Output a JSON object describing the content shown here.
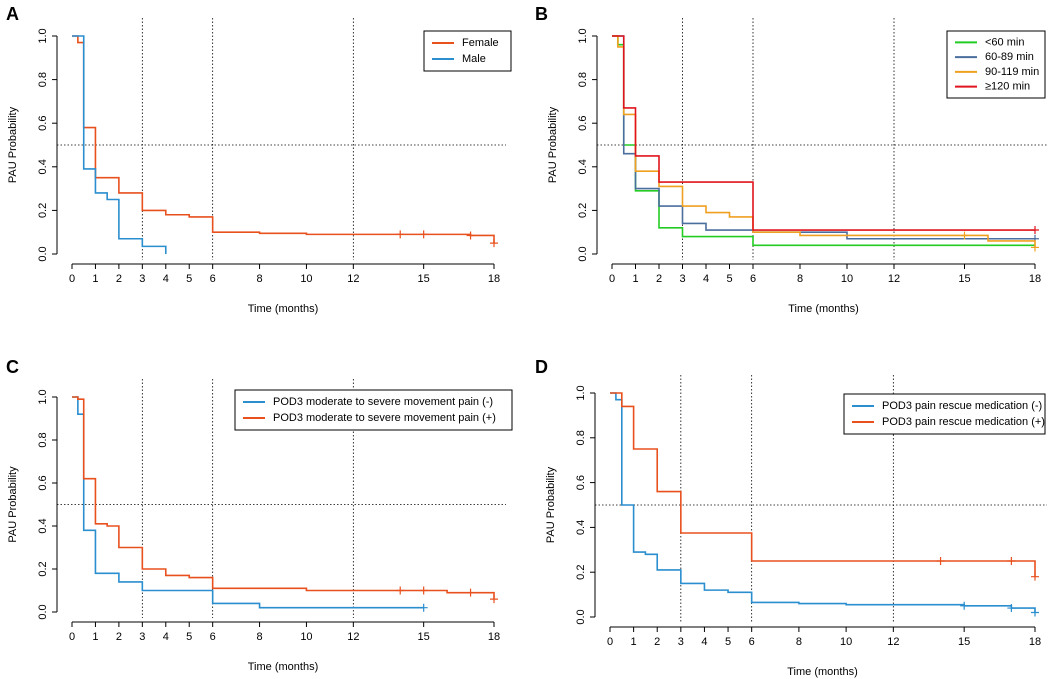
{
  "chart_data": [
    {
      "panel": "A",
      "type": "line",
      "subtype": "kaplan-meier step",
      "xlabel": "Time (months)",
      "ylabel": "PAU Probability",
      "xlim": [
        0,
        18
      ],
      "ylim": [
        0,
        1
      ],
      "xticks": [
        0,
        1,
        2,
        3,
        4,
        5,
        6,
        8,
        10,
        12,
        15,
        18
      ],
      "yticks": [
        0.0,
        0.2,
        0.4,
        0.6,
        0.8,
        1.0
      ],
      "ytick_labels": [
        "0.0",
        "0.2",
        "0.4",
        "0.6",
        "0.8",
        "1.0"
      ],
      "vlines": [
        3,
        6,
        12
      ],
      "hline": 0.5,
      "legend_position": "top-right",
      "series": [
        {
          "name": "Female",
          "color": "#e8501e",
          "x": [
            0,
            0.25,
            0.5,
            1,
            2,
            3,
            4,
            5,
            6,
            8,
            10,
            14,
            15,
            17,
            18
          ],
          "y": [
            1.0,
            0.97,
            0.58,
            0.35,
            0.28,
            0.2,
            0.18,
            0.17,
            0.1,
            0.095,
            0.09,
            0.09,
            0.09,
            0.085,
            0.05
          ],
          "censor_x": [
            14,
            15,
            17,
            18
          ]
        },
        {
          "name": "Male",
          "color": "#2a8ecf",
          "x": [
            0,
            0.5,
            1,
            1.5,
            2,
            3,
            4
          ],
          "y": [
            1.0,
            0.39,
            0.28,
            0.25,
            0.07,
            0.035,
            0.0
          ],
          "censor_x": []
        }
      ]
    },
    {
      "panel": "B",
      "type": "line",
      "subtype": "kaplan-meier step",
      "xlabel": "Time (months)",
      "ylabel": "PAU Probability",
      "xlim": [
        0,
        18
      ],
      "ylim": [
        0,
        1
      ],
      "xticks": [
        0,
        1,
        2,
        3,
        4,
        5,
        6,
        8,
        10,
        12,
        15,
        18
      ],
      "yticks": [
        0.0,
        0.2,
        0.4,
        0.6,
        0.8,
        1.0
      ],
      "ytick_labels": [
        "0.0",
        "0.2",
        "0.4",
        "0.6",
        "0.8",
        "1.0"
      ],
      "vlines": [
        3,
        6,
        12
      ],
      "hline": 0.5,
      "legend_position": "top-right",
      "series": [
        {
          "name": "<60 min",
          "color": "#22cc22",
          "x": [
            0,
            0.25,
            0.5,
            1,
            2,
            3,
            6,
            18
          ],
          "y": [
            1.0,
            0.96,
            0.5,
            0.29,
            0.12,
            0.08,
            0.04,
            0.04
          ],
          "censor_x": []
        },
        {
          "name": "60-89 min",
          "color": "#4a6e9e",
          "x": [
            0,
            0.5,
            1,
            2,
            3,
            4,
            6,
            10,
            18
          ],
          "y": [
            1.0,
            0.46,
            0.3,
            0.22,
            0.14,
            0.11,
            0.1,
            0.07,
            0.07
          ],
          "censor_x": [
            18
          ]
        },
        {
          "name": "90-119 min",
          "color": "#f0a020",
          "x": [
            0,
            0.25,
            0.5,
            1,
            2,
            3,
            4,
            5,
            6,
            8,
            15,
            16,
            18
          ],
          "y": [
            1.0,
            0.95,
            0.64,
            0.38,
            0.31,
            0.22,
            0.19,
            0.17,
            0.1,
            0.085,
            0.085,
            0.06,
            0.03
          ],
          "censor_x": [
            15,
            18
          ]
        },
        {
          "name": "≥120 min",
          "color": "#e0141e",
          "x": [
            0,
            0.5,
            1,
            2,
            3,
            6,
            18
          ],
          "y": [
            1.0,
            0.67,
            0.45,
            0.33,
            0.33,
            0.11,
            0.11
          ],
          "censor_x": [
            18
          ]
        }
      ]
    },
    {
      "panel": "C",
      "type": "line",
      "subtype": "kaplan-meier step",
      "xlabel": "Time (months)",
      "ylabel": "PAU Probability",
      "xlim": [
        0,
        18
      ],
      "ylim": [
        0,
        1
      ],
      "xticks": [
        0,
        1,
        2,
        3,
        4,
        5,
        6,
        8,
        10,
        12,
        15,
        18
      ],
      "yticks": [
        0.0,
        0.2,
        0.4,
        0.6,
        0.8,
        1.0
      ],
      "ytick_labels": [
        "0.0",
        "0.2",
        "0.4",
        "0.6",
        "0.8",
        "1.0"
      ],
      "vlines": [
        3,
        6,
        12
      ],
      "hline": 0.5,
      "legend_position": "top-right",
      "series": [
        {
          "name": "POD3 moderate to severe movement pain (-)",
          "color": "#2a8ecf",
          "x": [
            0,
            0.25,
            0.5,
            1,
            2,
            3,
            6,
            8,
            15
          ],
          "y": [
            1.0,
            0.92,
            0.38,
            0.18,
            0.14,
            0.1,
            0.04,
            0.02,
            0.02
          ],
          "censor_x": [
            15
          ]
        },
        {
          "name": "POD3 moderate to severe movement pain (+)",
          "color": "#e8501e",
          "x": [
            0,
            0.25,
            0.5,
            1,
            1.5,
            2,
            3,
            4,
            5,
            6,
            10,
            14,
            15,
            16,
            17,
            18
          ],
          "y": [
            1.0,
            0.99,
            0.62,
            0.41,
            0.4,
            0.3,
            0.2,
            0.17,
            0.16,
            0.11,
            0.1,
            0.1,
            0.1,
            0.09,
            0.09,
            0.06
          ],
          "censor_x": [
            14,
            15,
            17,
            18
          ]
        }
      ]
    },
    {
      "panel": "D",
      "type": "line",
      "subtype": "kaplan-meier step",
      "xlabel": "Time (months)",
      "ylabel": "PAU Probability",
      "xlim": [
        0,
        18
      ],
      "ylim": [
        0,
        1
      ],
      "xticks": [
        0,
        1,
        2,
        3,
        4,
        5,
        6,
        8,
        10,
        12,
        15,
        18
      ],
      "yticks": [
        0.0,
        0.2,
        0.4,
        0.6,
        0.8,
        1.0
      ],
      "ytick_labels": [
        "0.0",
        "0.2",
        "0.4",
        "0.6",
        "0.8",
        "1.0"
      ],
      "vlines": [
        3,
        6,
        12
      ],
      "hline": 0.5,
      "legend_position": "top-right",
      "series": [
        {
          "name": "POD3 pain rescue medication (-)",
          "color": "#2a8ecf",
          "x": [
            0,
            0.25,
            0.5,
            1,
            1.5,
            2,
            3,
            4,
            5,
            6,
            8,
            10,
            15,
            17,
            18
          ],
          "y": [
            1.0,
            0.97,
            0.5,
            0.29,
            0.28,
            0.21,
            0.15,
            0.12,
            0.11,
            0.065,
            0.06,
            0.055,
            0.05,
            0.04,
            0.02
          ],
          "censor_x": [
            15,
            17,
            18
          ]
        },
        {
          "name": "POD3 pain rescue medication (+)",
          "color": "#e8501e",
          "x": [
            0,
            0.5,
            1,
            2,
            3,
            6,
            17,
            18
          ],
          "y": [
            1.0,
            0.94,
            0.75,
            0.56,
            0.375,
            0.25,
            0.25,
            0.18
          ],
          "censor_x": [
            14,
            17,
            18
          ]
        }
      ]
    }
  ]
}
